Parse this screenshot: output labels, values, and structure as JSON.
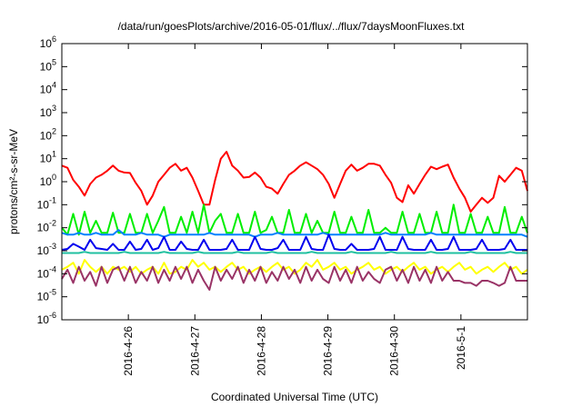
{
  "chart_data": {
    "type": "line",
    "title": "/data/run/goesPlots/archive/2016-05-01/flux/../flux/7daysMoonFluxes.txt",
    "xlabel": "Coordinated Universal Time (UTC)",
    "ylabel": "protons/cm²-s-sr-MeV",
    "yscale": "log",
    "ylim": [
      1e-06,
      1000000.0
    ],
    "y_ticks": [
      {
        "exp": -6,
        "base": "10",
        "sup": "-6"
      },
      {
        "exp": -5,
        "base": "10",
        "sup": "-5"
      },
      {
        "exp": -4,
        "base": "10",
        "sup": "-4"
      },
      {
        "exp": -3,
        "base": "10",
        "sup": "-3"
      },
      {
        "exp": -2,
        "base": "10",
        "sup": "-2"
      },
      {
        "exp": -1,
        "base": "10",
        "sup": "-1"
      },
      {
        "exp": 0,
        "base": "10",
        "sup": "0"
      },
      {
        "exp": 1,
        "base": "10",
        "sup": "1"
      },
      {
        "exp": 2,
        "base": "10",
        "sup": "2"
      },
      {
        "exp": 3,
        "base": "10",
        "sup": "3"
      },
      {
        "exp": 4,
        "base": "10",
        "sup": "4"
      },
      {
        "exp": 5,
        "base": "10",
        "sup": "5"
      },
      {
        "exp": 6,
        "base": "10",
        "sup": "6"
      }
    ],
    "xlim": [
      "2016-04-25 00:00",
      "2016-05-02 00:00"
    ],
    "x_ticks": [
      "2016-4-26",
      "2016-4-27",
      "2016-4-28",
      "2016-4-29",
      "2016-4-30",
      "2016-5-1"
    ],
    "grid": false,
    "legend": "none",
    "series": [
      {
        "color": "#ff0000",
        "values": [
          5,
          4,
          1.2,
          0.6,
          0.25,
          0.8,
          1.5,
          2,
          3,
          5,
          3,
          2.5,
          2.4,
          0.9,
          0.4,
          0.1,
          0.25,
          1,
          2,
          4,
          6,
          3,
          4,
          1.5,
          0.4,
          0.1,
          0.1,
          1.2,
          10,
          20,
          5,
          3,
          1.5,
          1.6,
          2.5,
          1.5,
          0.6,
          0.5,
          0.3,
          0.8,
          2,
          3,
          5,
          7,
          5,
          3.5,
          2,
          0.8,
          0.2,
          0.8,
          3,
          5.5,
          3,
          4,
          6,
          6,
          5,
          2,
          0.9,
          0.2,
          0.13,
          0.7,
          0.3,
          0.8,
          2,
          4.5,
          3.5,
          4.5,
          5.5,
          1.5,
          0.5,
          0.2,
          0.05,
          0.1,
          0.2,
          0.12,
          0.2,
          1.8,
          1,
          2,
          4,
          3,
          0.4
        ]
      },
      {
        "color": "#00ee00",
        "values": [
          0.01,
          0.005,
          0.04,
          0.005,
          0.05,
          0.006,
          0.02,
          0.006,
          0.006,
          0.045,
          0.006,
          0.006,
          0.04,
          0.006,
          0.006,
          0.04,
          0.006,
          0.02,
          0.08,
          0.006,
          0.006,
          0.03,
          0.006,
          0.05,
          0.006,
          0.1,
          0.006,
          0.02,
          0.04,
          0.006,
          0.006,
          0.04,
          0.006,
          0.006,
          0.05,
          0.006,
          0.008,
          0.03,
          0.006,
          0.006,
          0.06,
          0.006,
          0.006,
          0.04,
          0.006,
          0.02,
          0.006,
          0.006,
          0.05,
          0.006,
          0.006,
          0.03,
          0.006,
          0.006,
          0.06,
          0.006,
          0.006,
          0.01,
          0.006,
          0.006,
          0.05,
          0.006,
          0.006,
          0.04,
          0.006,
          0.006,
          0.05,
          0.006,
          0.006,
          0.1,
          0.006,
          0.006,
          0.04,
          0.006,
          0.006,
          0.03,
          0.006,
          0.006,
          0.08,
          0.006,
          0.006,
          0.03,
          0.006
        ]
      },
      {
        "color": "#0080ff",
        "values": [
          0.006,
          0.005,
          0.005,
          0.006,
          0.005,
          0.005,
          0.006,
          0.005,
          0.005,
          0.005,
          0.008,
          0.005,
          0.005,
          0.005,
          0.006,
          0.005,
          0.005,
          0.005,
          0.004,
          0.005,
          0.005,
          0.005,
          0.005,
          0.005,
          0.005,
          0.005,
          0.006,
          0.005,
          0.005,
          0.005,
          0.005,
          0.005,
          0.005,
          0.005,
          0.004,
          0.005,
          0.005,
          0.005,
          0.006,
          0.005,
          0.005,
          0.005,
          0.005,
          0.005,
          0.005,
          0.005,
          0.006,
          0.005,
          0.005,
          0.005,
          0.005,
          0.005,
          0.005,
          0.005,
          0.005,
          0.005,
          0.005,
          0.006,
          0.005,
          0.005,
          0.005,
          0.005,
          0.005,
          0.005,
          0.005,
          0.006,
          0.005,
          0.005,
          0.005,
          0.005,
          0.005,
          0.005,
          0.005,
          0.005,
          0.005,
          0.005,
          0.005,
          0.005,
          0.005,
          0.005,
          0.005,
          0.005,
          0.004
        ]
      },
      {
        "color": "#0000ee",
        "values": [
          0.0011,
          0.0012,
          0.002,
          0.0015,
          0.0011,
          0.003,
          0.0013,
          0.0012,
          0.0011,
          0.002,
          0.0011,
          0.0011,
          0.0025,
          0.0011,
          0.0012,
          0.003,
          0.0011,
          0.0013,
          0.004,
          0.0011,
          0.0011,
          0.0025,
          0.0012,
          0.0011,
          0.0011,
          0.003,
          0.0011,
          0.0011,
          0.0011,
          0.0012,
          0.003,
          0.0011,
          0.0011,
          0.0011,
          0.004,
          0.0012,
          0.0011,
          0.0011,
          0.0013,
          0.003,
          0.0011,
          0.0011,
          0.0011,
          0.004,
          0.0012,
          0.0011,
          0.0011,
          0.005,
          0.0012,
          0.0011,
          0.0011,
          0.002,
          0.0011,
          0.0011,
          0.0011,
          0.0012,
          0.004,
          0.0011,
          0.0011,
          0.0011,
          0.004,
          0.0012,
          0.0011,
          0.0011,
          0.0011,
          0.003,
          0.0011,
          0.0011,
          0.0012,
          0.004,
          0.0011,
          0.0011,
          0.0011,
          0.0012,
          0.003,
          0.0011,
          0.0011,
          0.0011,
          0.0012,
          0.003,
          0.0011,
          0.0011,
          0.0011
        ]
      },
      {
        "color": "#20c0a0",
        "values": [
          0.0008,
          0.0008,
          0.0008,
          0.0008,
          0.0009,
          0.0008,
          0.0008,
          0.0008,
          0.0008,
          0.0008,
          0.0008,
          0.0009,
          0.0008,
          0.0008,
          0.0008,
          0.0008,
          0.0008,
          0.0008,
          0.0009,
          0.0008,
          0.0008,
          0.0008,
          0.0008,
          0.0008,
          0.0009,
          0.0008,
          0.0008,
          0.0008,
          0.0008,
          0.0008,
          0.0008,
          0.0009,
          0.0008,
          0.0008,
          0.0008,
          0.0008,
          0.0008,
          0.0009,
          0.0008,
          0.0008,
          0.0008,
          0.0008,
          0.0008,
          0.0008,
          0.0009,
          0.0008,
          0.0008,
          0.0008,
          0.0008,
          0.0008,
          0.0008,
          0.0009,
          0.0008,
          0.0008,
          0.0008,
          0.0008,
          0.0008,
          0.0008,
          0.0009,
          0.0008,
          0.0008,
          0.0008,
          0.0008,
          0.0008,
          0.0008,
          0.0009,
          0.0008,
          0.0008,
          0.0008,
          0.0008,
          0.0008,
          0.0008,
          0.0009,
          0.0008,
          0.0008,
          0.0008,
          0.0008,
          0.0008,
          0.0008,
          0.0009,
          0.0008,
          0.0008,
          0.0008
        ]
      },
      {
        "color": "#ffff00",
        "values": [
          0.00015,
          0.0002,
          0.0003,
          0.0001,
          0.0004,
          0.0002,
          0.00012,
          0.0002,
          0.0001,
          0.0002,
          0.00015,
          0.0002,
          0.00012,
          0.0002,
          0.0001,
          0.00015,
          0.0002,
          0.0001,
          0.0003,
          0.0001,
          0.00012,
          0.0002,
          0.00015,
          0.0004,
          0.0002,
          0.0003,
          0.00015,
          0.0002,
          0.00012,
          0.0002,
          0.0003,
          0.00015,
          0.0002,
          0.0001,
          0.00015,
          0.0002,
          0.00012,
          0.0002,
          0.0003,
          0.00015,
          0.0002,
          0.0001,
          0.00015,
          0.0003,
          0.0002,
          0.0004,
          0.00015,
          0.0002,
          0.0003,
          0.00015,
          0.0002,
          0.0001,
          0.00015,
          0.0002,
          0.0003,
          0.00015,
          0.0002,
          0.0001,
          0.00015,
          0.0002,
          0.00012,
          0.0002,
          0.0003,
          0.00015,
          0.0002,
          0.0001,
          0.00015,
          0.0002,
          0.00012,
          0.0002,
          0.0003,
          0.00015,
          0.0002,
          0.0001,
          0.00015,
          0.0002,
          0.00012,
          0.0002,
          0.0003,
          0.00015,
          0.0002,
          0.0001,
          0.00015
        ]
      },
      {
        "color": "#993366",
        "values": [
          6e-05,
          0.00015,
          4e-05,
          0.0002,
          5e-05,
          0.00012,
          3e-05,
          0.0002,
          4e-05,
          0.00015,
          0.0002,
          5e-05,
          0.0002,
          4e-05,
          0.00012,
          5e-05,
          0.0002,
          4e-05,
          0.00015,
          5e-05,
          0.0002,
          6e-05,
          0.0002,
          4e-05,
          0.00015,
          5e-05,
          2e-05,
          0.0002,
          5e-05,
          0.00015,
          6e-05,
          0.0002,
          4e-05,
          0.00015,
          5e-05,
          0.0002,
          4e-05,
          0.00012,
          5e-05,
          0.0002,
          6e-05,
          0.00015,
          4e-05,
          0.0002,
          5e-05,
          0.00015,
          6e-05,
          4e-05,
          0.0002,
          5e-05,
          0.00015,
          4e-05,
          0.0002,
          5e-05,
          0.00012,
          6e-05,
          4e-05,
          0.00015,
          0.0002,
          5e-05,
          0.00015,
          4e-05,
          0.0002,
          5e-05,
          0.00015,
          4e-05,
          0.0002,
          5e-05,
          0.00012,
          5e-05,
          5e-05,
          4e-05,
          4e-05,
          3e-05,
          5e-05,
          5e-05,
          4e-05,
          3e-05,
          4e-05,
          0.0002,
          5e-05,
          5e-05,
          5e-05
        ]
      }
    ]
  }
}
